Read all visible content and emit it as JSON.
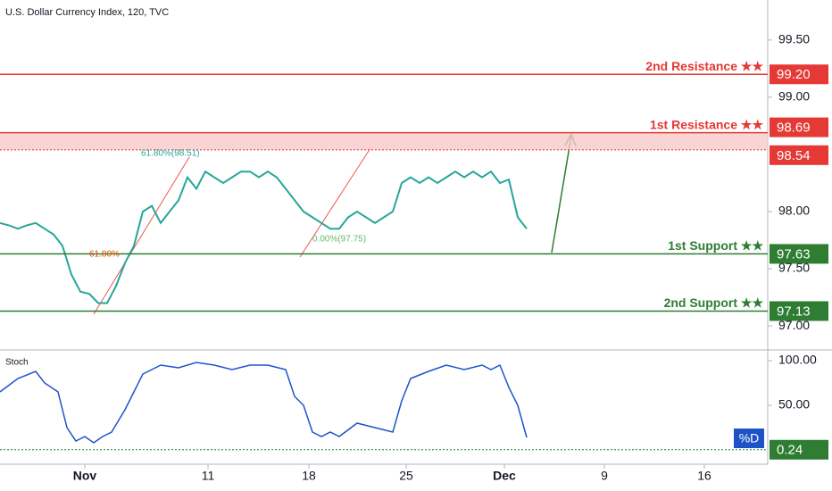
{
  "chart_data": [
    {
      "type": "line",
      "title": "U.S. Dollar Currency Index, 120, TVC",
      "color": "#26a69a",
      "x": [
        0,
        1,
        2,
        3,
        4,
        5,
        6,
        7,
        8,
        9,
        10,
        11,
        12,
        13,
        14,
        15,
        16,
        17,
        18,
        19,
        20,
        21,
        22,
        23,
        24,
        25,
        26,
        27,
        28,
        29,
        30,
        31,
        32,
        33,
        34,
        35,
        36,
        37,
        38,
        39,
        40,
        41,
        42,
        43,
        44,
        45,
        46,
        47,
        48,
        49,
        50,
        51,
        52,
        53,
        54,
        55,
        56,
        57,
        58,
        59
      ],
      "values": [
        97.9,
        97.88,
        97.85,
        97.88,
        97.9,
        97.85,
        97.8,
        97.7,
        97.45,
        97.3,
        97.28,
        97.2,
        97.2,
        97.35,
        97.55,
        97.7,
        98.0,
        98.05,
        97.9,
        98.0,
        98.1,
        98.3,
        98.2,
        98.35,
        98.3,
        98.25,
        98.3,
        98.35,
        98.35,
        98.3,
        98.35,
        98.3,
        98.2,
        98.1,
        98.0,
        97.95,
        97.9,
        97.85,
        97.85,
        97.95,
        98.0,
        97.95,
        97.9,
        97.95,
        98.0,
        98.25,
        98.3,
        98.25,
        98.3,
        98.25,
        98.3,
        98.35,
        98.3,
        98.35,
        98.3,
        98.35,
        98.25,
        98.28,
        97.95,
        97.85
      ],
      "xlim": [
        0,
        86
      ],
      "ylim": [
        96.79,
        99.85
      ],
      "yticks": [
        {
          "value": 97.0,
          "label": "97.00"
        },
        {
          "value": 97.5,
          "label": "97.50"
        },
        {
          "value": 98.0,
          "label": "98.00"
        },
        {
          "value": 99.0,
          "label": "99.00"
        },
        {
          "value": 99.5,
          "label": "99.50"
        }
      ],
      "levels": [
        {
          "name": "2nd Resistance ★★",
          "value": 99.2,
          "label": "99.20",
          "color": "#e53935"
        },
        {
          "name": "1st Resistance ★★",
          "value": 98.69,
          "label": "98.69",
          "color": "#e53935"
        },
        {
          "value": 98.54,
          "label": "98.54",
          "color": "#e53935"
        },
        {
          "name": "1st Support ★★",
          "value": 97.63,
          "label": "97.63",
          "color": "#2e7d32"
        },
        {
          "name": "2nd Support ★★",
          "value": 97.13,
          "label": "97.13",
          "color": "#2e7d32"
        }
      ],
      "annotations": [
        "61.80%(98.51)",
        "61.80%",
        "0.00%(97.75)"
      ]
    },
    {
      "type": "line",
      "title": "Stoch",
      "annotation": "%D",
      "color": "#1e53c8",
      "x": [
        0,
        2,
        4,
        5,
        6.5,
        7.5,
        8.5,
        9.5,
        10.5,
        11.5,
        12.5,
        14,
        16,
        18,
        20,
        22,
        24,
        26,
        28,
        30,
        32,
        33,
        34,
        35,
        36,
        37,
        38,
        40,
        42,
        44,
        45,
        46,
        48,
        50,
        52,
        54,
        55,
        56,
        57,
        58,
        59
      ],
      "values": [
        65,
        80,
        88,
        75,
        65,
        25,
        10,
        15,
        8,
        15,
        20,
        45,
        85,
        95,
        92,
        98,
        95,
        90,
        95,
        95,
        90,
        60,
        50,
        20,
        15,
        20,
        15,
        30,
        25,
        20,
        55,
        80,
        88,
        95,
        90,
        95,
        90,
        95,
        70,
        50,
        14
      ],
      "xlim": [
        0,
        86
      ],
      "ylim": [
        -16,
        112
      ],
      "yticks": [
        {
          "value": 100,
          "label": "100.00"
        },
        {
          "value": 50,
          "label": "50.00"
        }
      ],
      "levels": [
        {
          "value": 0.24,
          "label": "0.24",
          "color": "#2e7d32"
        }
      ],
      "xticks": [
        {
          "value": 9.5,
          "label": "Nov"
        },
        {
          "value": 23.3,
          "label": "11"
        },
        {
          "value": 34.6,
          "label": "18"
        },
        {
          "value": 45.5,
          "label": "25"
        },
        {
          "value": 56.5,
          "label": "Dec"
        },
        {
          "value": 67.7,
          "label": "9"
        },
        {
          "value": 78.9,
          "label": "16"
        }
      ]
    }
  ]
}
